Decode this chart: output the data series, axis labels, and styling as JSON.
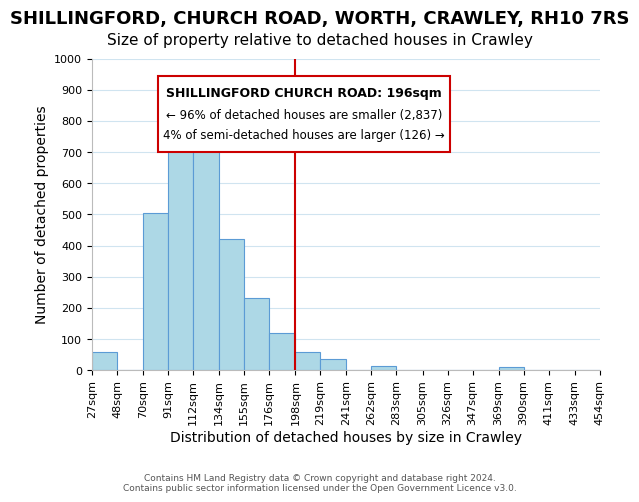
{
  "title": "SHILLINGFORD, CHURCH ROAD, WORTH, CRAWLEY, RH10 7RS",
  "subtitle": "Size of property relative to detached houses in Crawley",
  "xlabel": "Distribution of detached houses by size in Crawley",
  "ylabel": "Number of detached properties",
  "footnote1": "Contains HM Land Registry data © Crown copyright and database right 2024.",
  "footnote2": "Contains public sector information licensed under the Open Government Licence v3.0.",
  "bar_edges": [
    27,
    48,
    70,
    91,
    112,
    134,
    155,
    176,
    198,
    219,
    241,
    262,
    283,
    305,
    326,
    347,
    369,
    390,
    411,
    433,
    454
  ],
  "bar_heights": [
    57,
    0,
    505,
    820,
    710,
    420,
    232,
    118,
    57,
    37,
    0,
    15,
    0,
    0,
    0,
    0,
    11,
    0,
    0,
    0
  ],
  "bar_color": "#add8e6",
  "bar_edgecolor": "#5b9bd5",
  "vline_x": 198,
  "vline_color": "#cc0000",
  "ylim": [
    0,
    1000
  ],
  "yticks": [
    0,
    100,
    200,
    300,
    400,
    500,
    600,
    700,
    800,
    900,
    1000
  ],
  "xtick_labels": [
    "27sqm",
    "48sqm",
    "70sqm",
    "91sqm",
    "112sqm",
    "134sqm",
    "155sqm",
    "176sqm",
    "198sqm",
    "219sqm",
    "241sqm",
    "262sqm",
    "283sqm",
    "305sqm",
    "326sqm",
    "347sqm",
    "369sqm",
    "390sqm",
    "411sqm",
    "433sqm",
    "454sqm"
  ],
  "annotation_title": "SHILLINGFORD CHURCH ROAD: 196sqm",
  "annotation_line1": "← 96% of detached houses are smaller (2,837)",
  "annotation_line2": "4% of semi-detached houses are larger (126) →",
  "grid_color": "#d0e4f0",
  "title_fontsize": 13,
  "subtitle_fontsize": 11,
  "tick_fontsize": 8.0,
  "label_fontsize": 10
}
